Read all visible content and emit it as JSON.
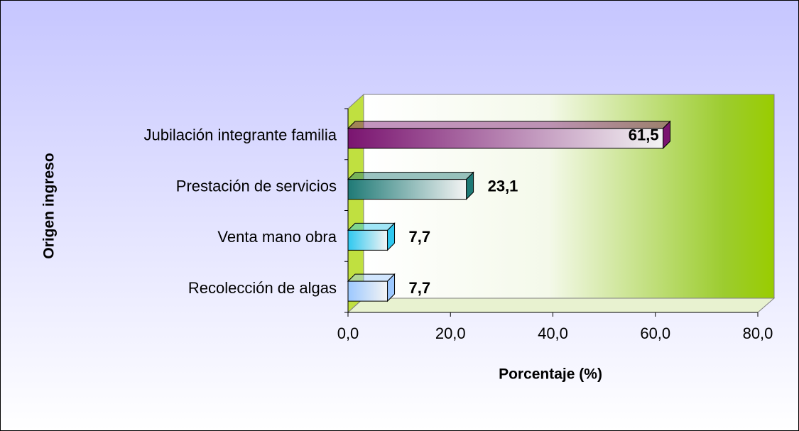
{
  "chart_data": {
    "type": "bar3d",
    "categories": [
      "Jubilación integrante familia",
      "Prestación de servicios",
      "Venta mano obra",
      "Recolección de algas"
    ],
    "values": [
      61.5,
      23.1,
      7.7,
      7.7
    ],
    "value_labels": [
      "61,5",
      "23,1",
      "7,7",
      "7,7"
    ],
    "colors": [
      "#7a1470",
      "#1f7a76",
      "#2fc8f0",
      "#9cc8ff"
    ],
    "xlabel": "Porcentaje (%)",
    "ylabel": "Origen ingreso",
    "xlim": [
      0,
      80
    ],
    "xticks": [
      {
        "value": 0,
        "label": "0,0"
      },
      {
        "value": 20,
        "label": "20,0"
      },
      {
        "value": 40,
        "label": "40,0"
      },
      {
        "value": 60,
        "label": "60,0"
      },
      {
        "value": 80,
        "label": "80,0"
      }
    ]
  }
}
